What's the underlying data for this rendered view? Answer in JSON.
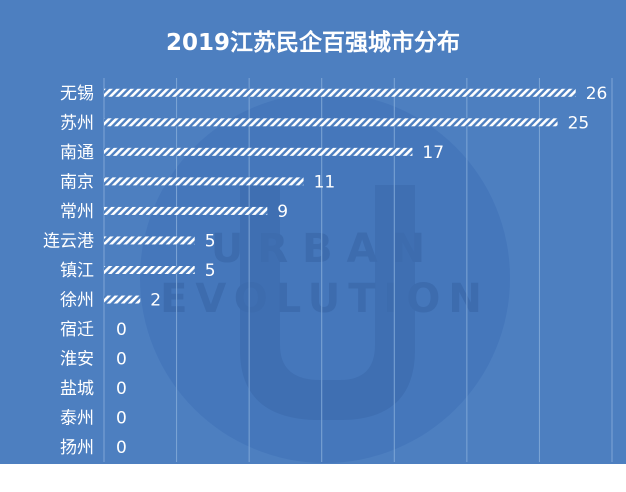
{
  "chart_data": {
    "type": "bar",
    "orientation": "horizontal",
    "title": "2019江苏民企百强城市分布",
    "categories": [
      "无锡",
      "苏州",
      "南通",
      "南京",
      "常州",
      "连云港",
      "镇江",
      "徐州",
      "宿迁",
      "淮安",
      "盐城",
      "泰州",
      "扬州"
    ],
    "values": [
      26,
      25,
      17,
      11,
      9,
      5,
      5,
      2,
      0,
      0,
      0,
      0,
      0
    ],
    "data_labels": [
      "26",
      "25",
      "17",
      "11",
      "9",
      "5",
      "5",
      "2",
      "0",
      "0",
      "0",
      "0",
      "0"
    ],
    "xlim": [
      0,
      28
    ],
    "grid": true,
    "legend": "none",
    "bar_fill": "diagonal-hatch"
  },
  "watermark": {
    "text_line1": "URBAN",
    "text_line2": "EVOLUTION"
  },
  "colors": {
    "background": "#4d7fc0",
    "grid": "#7ea6d6",
    "bar": "#ffffff",
    "text": "#ffffff",
    "watermark": "#3f6fb2"
  }
}
